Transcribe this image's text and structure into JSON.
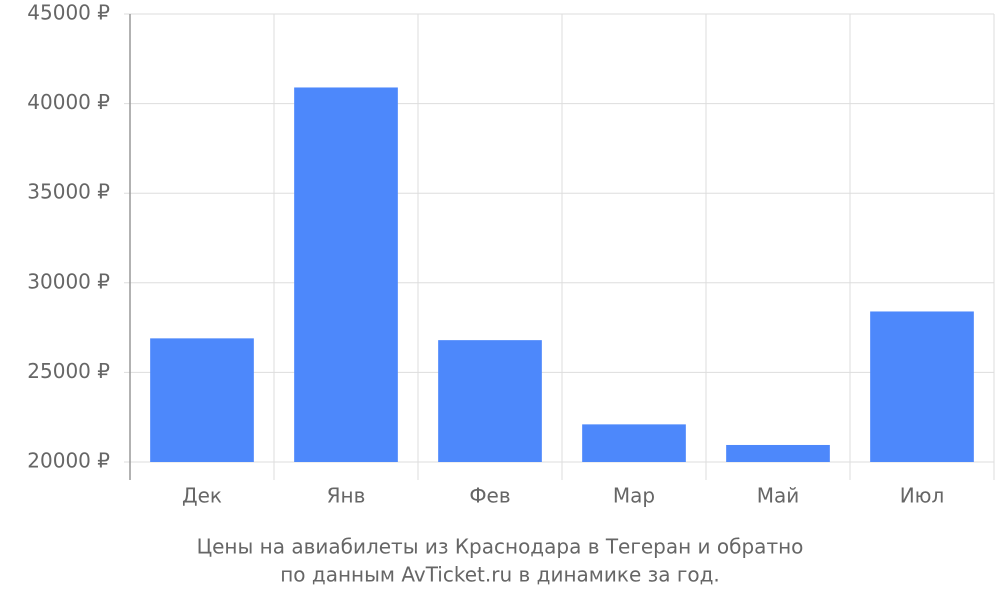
{
  "chart_data": {
    "type": "bar",
    "caption": [
      "Цены на авиабилеты из Краснодара в Тегеран и обратно",
      "по данным AvTicket.ru в динамике за год."
    ],
    "categories": [
      "Дек",
      "Янв",
      "Фев",
      "Мар",
      "Май",
      "Июл"
    ],
    "values": [
      26900,
      40900,
      26800,
      22100,
      20950,
      28400
    ],
    "color": "#4d88fb",
    "ylim": [
      20000,
      45000
    ],
    "yticks": [
      {
        "value": 20000,
        "label": "20000 ₽"
      },
      {
        "value": 25000,
        "label": "25000 ₽"
      },
      {
        "value": 30000,
        "label": "30000 ₽"
      },
      {
        "value": 35000,
        "label": "35000 ₽"
      },
      {
        "value": 40000,
        "label": "40000 ₽"
      },
      {
        "value": 45000,
        "label": "45000 ₽"
      }
    ],
    "grid": true
  }
}
